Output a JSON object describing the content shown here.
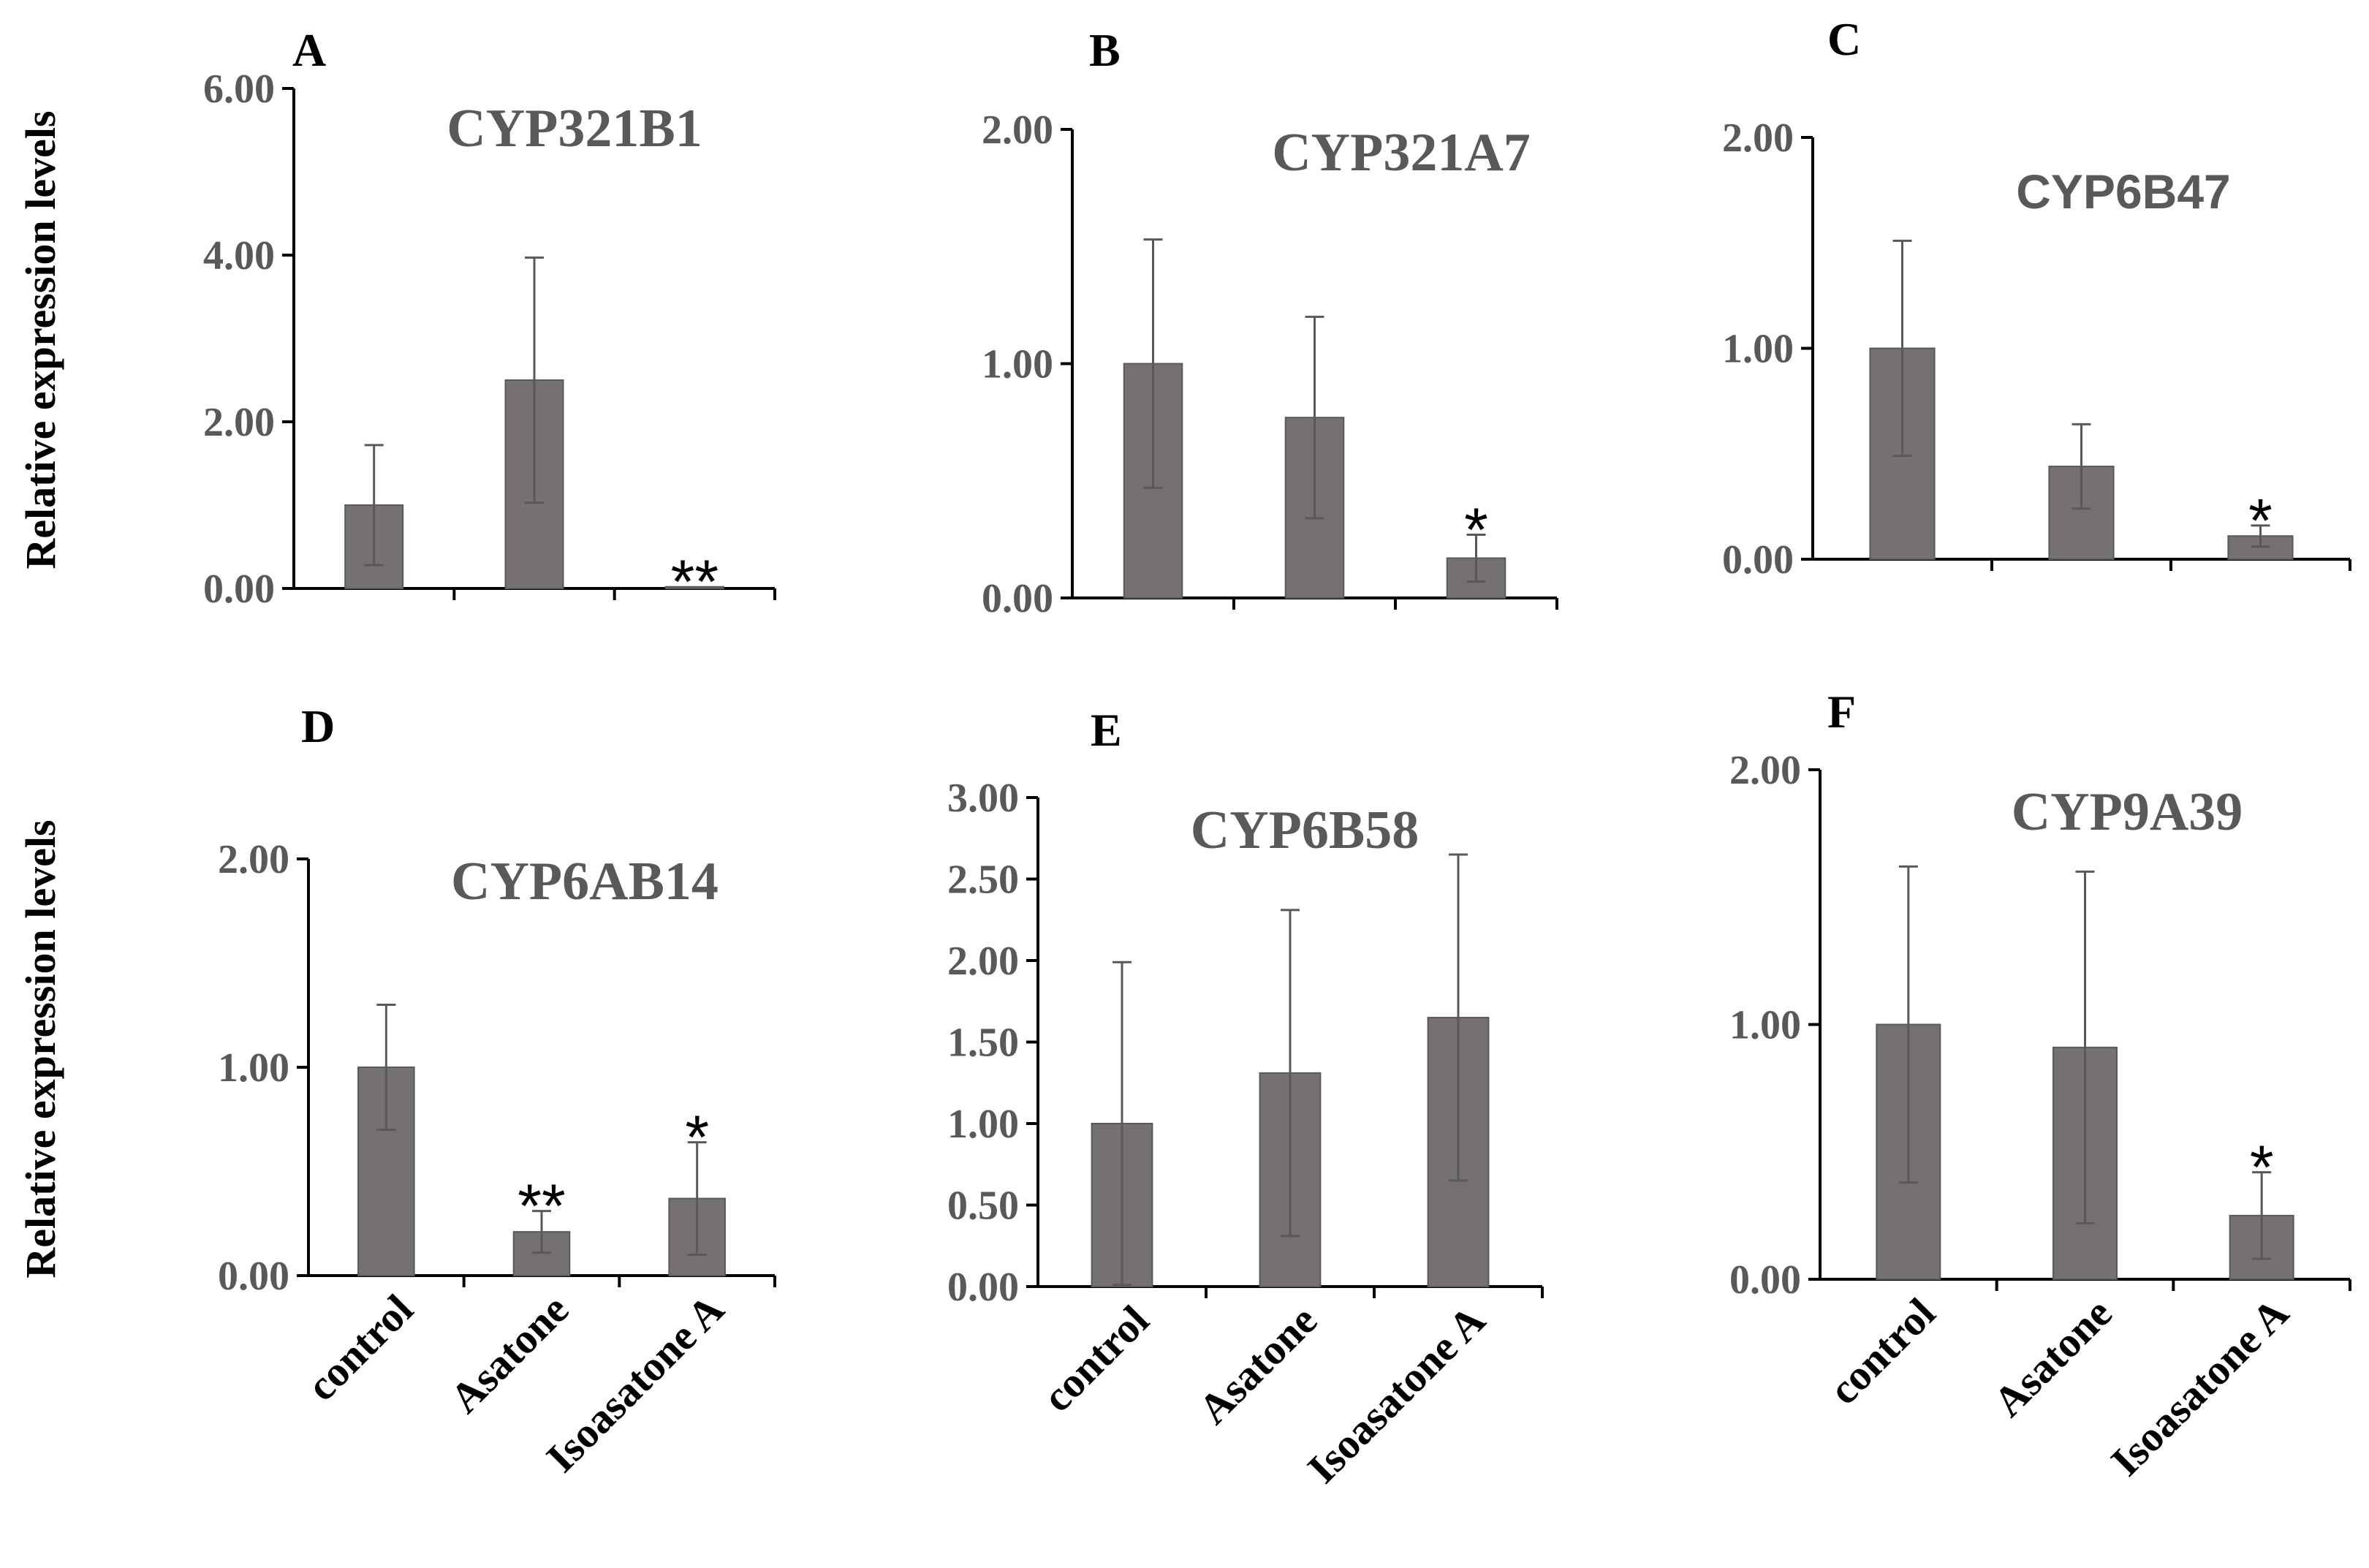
{
  "ylabel_shared": "Relative expression levels",
  "colors": {
    "bar": "#767171",
    "bar_edge": "#595959",
    "axis": "#000000",
    "tick_text": "#595959",
    "title_text": "#595959"
  },
  "chart_data": [
    {
      "panel": "A",
      "title": "CYP321B1",
      "type": "bar",
      "categories": [
        "control",
        "Asatone",
        "Isoasatone A"
      ],
      "values": [
        1.0,
        2.5,
        0.02
      ],
      "errors": [
        0.72,
        1.47,
        0.0
      ],
      "significance": [
        "",
        "",
        "**"
      ],
      "ylim": [
        0,
        6
      ],
      "yticks": [
        0,
        2,
        4,
        6
      ],
      "yticklabels": [
        "0.00",
        "2.00",
        "4.00",
        "6.00"
      ],
      "ylabel": "Relative expression levels",
      "show_category_labels": false
    },
    {
      "panel": "B",
      "title": "CYP321A7",
      "type": "bar",
      "categories": [
        "control",
        "Asatone",
        "Isoasatone A"
      ],
      "values": [
        1.0,
        0.77,
        0.17
      ],
      "errors": [
        0.53,
        0.43,
        0.1
      ],
      "significance": [
        "",
        "",
        "*"
      ],
      "ylim": [
        0,
        2
      ],
      "yticks": [
        0,
        1,
        2
      ],
      "yticklabels": [
        "0.00",
        "1.00",
        "2.00"
      ],
      "ylabel": "",
      "show_category_labels": false
    },
    {
      "panel": "C",
      "title": "CYP6B47",
      "type": "bar",
      "categories": [
        "control",
        "Asatone",
        "Isoasatone A"
      ],
      "values": [
        1.0,
        0.44,
        0.11
      ],
      "errors": [
        0.51,
        0.2,
        0.05
      ],
      "significance": [
        "",
        "",
        "*"
      ],
      "ylim": [
        0,
        2
      ],
      "yticks": [
        0,
        1,
        2
      ],
      "yticklabels": [
        "0.00",
        "1.00",
        "2.00"
      ],
      "ylabel": "",
      "show_category_labels": false
    },
    {
      "panel": "D",
      "title": "CYP6AB14",
      "type": "bar",
      "categories": [
        "control",
        "Asatone",
        "Isoasatone A"
      ],
      "values": [
        1.0,
        0.21,
        0.37
      ],
      "errors": [
        0.3,
        0.1,
        0.27
      ],
      "significance": [
        "",
        "**",
        "*"
      ],
      "ylim": [
        0,
        2
      ],
      "yticks": [
        0,
        1,
        2
      ],
      "yticklabels": [
        "0.00",
        "1.00",
        "2.00"
      ],
      "ylabel": "Relative expression levels",
      "show_category_labels": true
    },
    {
      "panel": "E",
      "title": "CYP6B58",
      "type": "bar",
      "categories": [
        "control",
        "Asatone",
        "Isoasatone A"
      ],
      "values": [
        1.0,
        1.31,
        1.65
      ],
      "errors": [
        0.99,
        1.0,
        1.0
      ],
      "significance": [
        "",
        "",
        ""
      ],
      "ylim": [
        0,
        3
      ],
      "yticks": [
        0,
        0.5,
        1,
        1.5,
        2,
        2.5,
        3
      ],
      "yticklabels": [
        "0.00",
        "0.50",
        "1.00",
        "1.50",
        "2.00",
        "2.50",
        "3.00"
      ],
      "ylabel": "",
      "show_category_labels": true
    },
    {
      "panel": "F",
      "title": "CYP9A39",
      "type": "bar",
      "categories": [
        "control",
        "Asatone",
        "Isoasatone A"
      ],
      "values": [
        1.0,
        0.91,
        0.25
      ],
      "errors": [
        0.62,
        0.69,
        0.17
      ],
      "significance": [
        "",
        "",
        "*"
      ],
      "ylim": [
        0,
        2
      ],
      "yticks": [
        0,
        1,
        2
      ],
      "yticklabels": [
        "0.00",
        "1.00",
        "2.00"
      ],
      "ylabel": "",
      "show_category_labels": true
    }
  ]
}
